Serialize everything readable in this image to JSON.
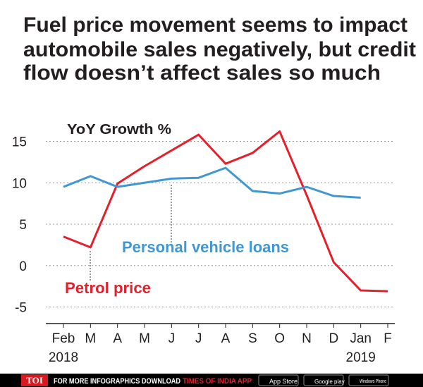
{
  "chart_data": {
    "type": "line",
    "title": [
      "Fuel price movement seems to impact",
      "automobile sales negatively, but credit",
      "flow doesn’t affect sales so much"
    ],
    "y_label": "YoY Growth %",
    "categories": [
      "Feb",
      "M",
      "A",
      "M",
      "J",
      "J",
      "A",
      "S",
      "O",
      "N",
      "D",
      "Jan",
      "F"
    ],
    "category_years": [
      "2018",
      null,
      null,
      null,
      null,
      null,
      null,
      null,
      null,
      null,
      null,
      "2019",
      null
    ],
    "series": [
      {
        "name": "Petrol price",
        "color": "#e3202b",
        "values": [
          3.5,
          2.2,
          9.9,
          12,
          13.9,
          15.8,
          12.3,
          13.6,
          16.2,
          8.5,
          0.4,
          -3,
          -3.1
        ]
      },
      {
        "name": "Personal vehicle loans",
        "color": "#3f97d3",
        "values": [
          9.5,
          10.8,
          9.5,
          10,
          10.5,
          10.6,
          11.8,
          9,
          8.7,
          9.5,
          8.4,
          8.2,
          null
        ]
      }
    ],
    "ylim": [
      -7,
      17
    ],
    "yticks": [
      -5,
      0,
      5,
      10,
      15
    ],
    "grid": true
  },
  "footer": {
    "brand": "TOI",
    "text": "FOR MORE  INFOGRAPHICS DOWNLOAD",
    "app": "TIMES OF INDIA APP",
    "badges": [
      "App Store",
      "Google play",
      "Windows Phone"
    ]
  }
}
